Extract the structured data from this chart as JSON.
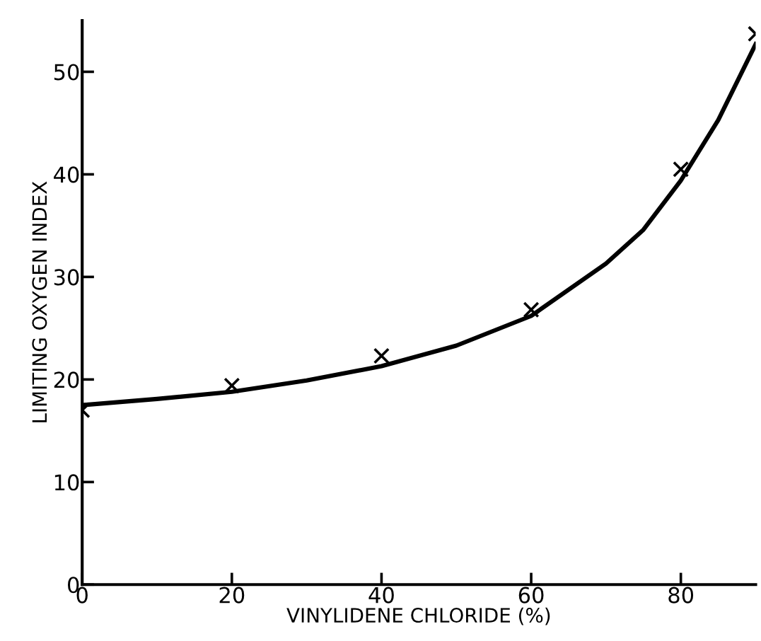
{
  "chart_data": {
    "type": "scatter",
    "xlabel": "VINYLIDENE CHLORIDE (%)",
    "ylabel": "LIMITING OXYGEN INDEX",
    "xlim": [
      0,
      90
    ],
    "ylim": [
      0,
      55
    ],
    "xticks": [
      0,
      20,
      40,
      60,
      80
    ],
    "yticks": [
      0,
      10,
      20,
      30,
      40,
      50
    ],
    "grid": false,
    "marker": "cross",
    "series": [
      {
        "color": "#000000",
        "x": [
          0,
          20,
          40,
          60,
          80,
          90
        ],
        "values": [
          17.0,
          19.4,
          22.3,
          26.8,
          40.5,
          53.7
        ]
      },
      {
        "type": "line",
        "color": "#000000",
        "line_style": "solid",
        "marker": "none",
        "x": [
          0,
          10,
          20,
          30,
          40,
          50,
          60,
          70,
          75,
          80,
          85,
          90
        ],
        "values": [
          17.5,
          18.1,
          18.8,
          19.9,
          21.3,
          23.3,
          26.2,
          31.3,
          34.6,
          39.4,
          45.3,
          52.7
        ]
      }
    ]
  }
}
